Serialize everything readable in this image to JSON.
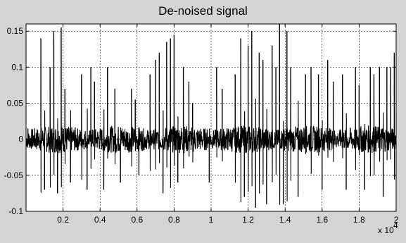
{
  "chart_data": {
    "type": "line",
    "title": "De-noised signal",
    "xlabel": "",
    "ylabel": "",
    "xlim": [
      0,
      2
    ],
    "ylim": [
      -0.1,
      0.16
    ],
    "x_exponent_label": "x 10",
    "x_exponent_power": "4",
    "x_tick_labels": [
      "0.2",
      "0.4",
      "0.6",
      "0.8",
      "1",
      "1.2",
      "1.4",
      "1.6",
      "1.8",
      "2"
    ],
    "y_tick_labels": [
      "-0.1",
      "-0.05",
      "0",
      "0.05",
      "0.1",
      "0.15"
    ],
    "x_ticks": [
      0.2,
      0.4,
      0.6,
      0.8,
      1.0,
      1.2,
      1.4,
      1.6,
      1.8,
      2.0
    ],
    "y_ticks": [
      -0.1,
      -0.05,
      0,
      0.05,
      0.1,
      0.15
    ],
    "grid": true,
    "line_color": "#000000",
    "series": [
      {
        "baseline_amplitude": 0.012,
        "spikes": [
          {
            "x": 0.01,
            "y": 0.015
          },
          {
            "x": 0.08,
            "y": 0.14
          },
          {
            "x": 0.1,
            "y": -0.07
          },
          {
            "x": 0.13,
            "y": 0.1
          },
          {
            "x": 0.15,
            "y": 0.15
          },
          {
            "x": 0.17,
            "y": -0.075
          },
          {
            "x": 0.19,
            "y": 0.155
          },
          {
            "x": 0.21,
            "y": 0.07
          },
          {
            "x": 0.24,
            "y": -0.06
          },
          {
            "x": 0.3,
            "y": 0.09
          },
          {
            "x": 0.33,
            "y": -0.07
          },
          {
            "x": 0.35,
            "y": 0.1
          },
          {
            "x": 0.37,
            "y": 0.08
          },
          {
            "x": 0.42,
            "y": -0.07
          },
          {
            "x": 0.44,
            "y": 0.1
          },
          {
            "x": 0.48,
            "y": 0.07
          },
          {
            "x": 0.51,
            "y": -0.06
          },
          {
            "x": 0.57,
            "y": 0.07
          },
          {
            "x": 0.59,
            "y": 0.055
          },
          {
            "x": 0.61,
            "y": -0.05
          },
          {
            "x": 0.67,
            "y": 0.09
          },
          {
            "x": 0.7,
            "y": 0.11
          },
          {
            "x": 0.72,
            "y": 0.12
          },
          {
            "x": 0.74,
            "y": -0.075
          },
          {
            "x": 0.76,
            "y": 0.135
          },
          {
            "x": 0.78,
            "y": 0.14
          },
          {
            "x": 0.8,
            "y": 0.145
          },
          {
            "x": 0.82,
            "y": -0.06
          },
          {
            "x": 0.85,
            "y": 0.1
          },
          {
            "x": 0.88,
            "y": 0.08
          },
          {
            "x": 0.9,
            "y": 0.05
          },
          {
            "x": 0.99,
            "y": -0.06
          },
          {
            "x": 1.03,
            "y": 0.1
          },
          {
            "x": 1.06,
            "y": 0.07
          },
          {
            "x": 1.13,
            "y": 0.09
          },
          {
            "x": 1.16,
            "y": 0.14
          },
          {
            "x": 1.18,
            "y": -0.08
          },
          {
            "x": 1.2,
            "y": 0.13
          },
          {
            "x": 1.22,
            "y": 0.15
          },
          {
            "x": 1.24,
            "y": -0.095
          },
          {
            "x": 1.26,
            "y": 0.12
          },
          {
            "x": 1.28,
            "y": 0.11
          },
          {
            "x": 1.3,
            "y": -0.09
          },
          {
            "x": 1.33,
            "y": 0.13
          },
          {
            "x": 1.35,
            "y": 0.1
          },
          {
            "x": 1.37,
            "y": 0.16
          },
          {
            "x": 1.39,
            "y": -0.09
          },
          {
            "x": 1.41,
            "y": 0.15
          },
          {
            "x": 1.43,
            "y": 0.1
          },
          {
            "x": 1.47,
            "y": -0.08
          },
          {
            "x": 1.51,
            "y": 0.09
          },
          {
            "x": 1.54,
            "y": 0.1
          },
          {
            "x": 1.58,
            "y": 0.09
          },
          {
            "x": 1.6,
            "y": -0.07
          },
          {
            "x": 1.63,
            "y": 0.11
          },
          {
            "x": 1.66,
            "y": 0.08
          },
          {
            "x": 1.71,
            "y": 0.09
          },
          {
            "x": 1.73,
            "y": -0.07
          },
          {
            "x": 1.78,
            "y": 0.1
          },
          {
            "x": 1.8,
            "y": 0.075
          },
          {
            "x": 1.83,
            "y": -0.07
          },
          {
            "x": 1.86,
            "y": 0.1
          },
          {
            "x": 1.88,
            "y": 0.09
          },
          {
            "x": 1.91,
            "y": 0.1
          },
          {
            "x": 1.93,
            "y": -0.08
          },
          {
            "x": 1.95,
            "y": 0.1
          },
          {
            "x": 1.97,
            "y": 0.1
          },
          {
            "x": 1.99,
            "y": 0.12
          }
        ]
      }
    ]
  }
}
